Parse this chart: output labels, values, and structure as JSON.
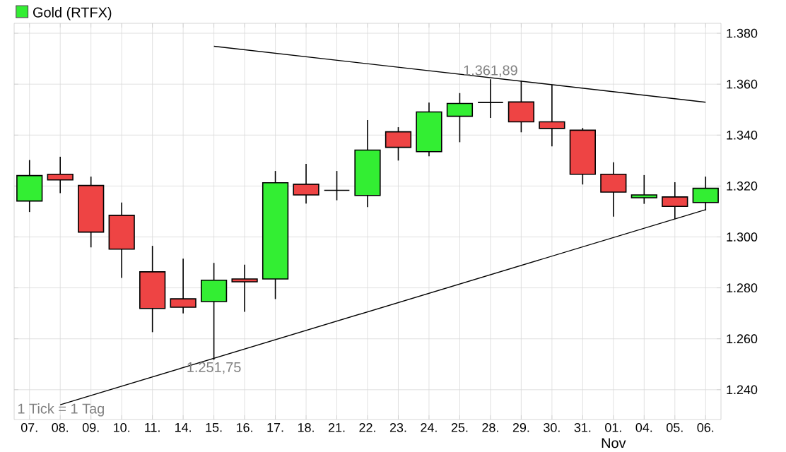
{
  "chart_data": {
    "type": "candlestick",
    "categories": [
      "07.",
      "08.",
      "09.",
      "10.",
      "11.",
      "14.",
      "15.",
      "16.",
      "17.",
      "18.",
      "21.",
      "22.",
      "23.",
      "24.",
      "25.",
      "28.",
      "29.",
      "30.",
      "31.",
      "01.",
      "04.",
      "05.",
      "06."
    ],
    "series": [
      {
        "name": "Gold (RTFX)",
        "color": "#33ee33",
        "ohlc": [
          [
            1314.1,
            1330.2,
            1309.8,
            1324.1
          ],
          [
            1324.6,
            1331.5,
            1317.2,
            1322.4
          ],
          [
            1320.2,
            1323.7,
            1295.9,
            1301.9
          ],
          [
            1308.5,
            1313.5,
            1283.9,
            1295.2
          ],
          [
            1286.3,
            1296.5,
            1262.6,
            1271.9
          ],
          [
            1275.7,
            1291.5,
            1270.0,
            1272.4
          ],
          [
            1274.6,
            1289.8,
            1251.75,
            1283.0
          ],
          [
            1283.5,
            1289.1,
            1270.6,
            1282.4
          ],
          [
            1283.5,
            1325.9,
            1275.6,
            1321.3
          ],
          [
            1320.7,
            1328.7,
            1313.1,
            1316.5
          ],
          [
            1318.3,
            1325.9,
            1314.4,
            1318.3
          ],
          [
            1316.3,
            1345.9,
            1311.7,
            1334.1
          ],
          [
            1341.3,
            1343.1,
            1330.0,
            1335.2
          ],
          [
            1333.5,
            1352.8,
            1331.7,
            1349.1
          ],
          [
            1347.4,
            1356.5,
            1337.2,
            1352.4
          ],
          [
            1352.8,
            1361.89,
            1346.7,
            1352.8
          ],
          [
            1353.0,
            1361.3,
            1341.1,
            1345.2
          ],
          [
            1345.2,
            1359.8,
            1335.6,
            1342.6
          ],
          [
            1341.9,
            1342.8,
            1320.6,
            1324.6
          ],
          [
            1324.6,
            1329.3,
            1308.0,
            1317.6
          ],
          [
            1315.4,
            1324.3,
            1313.0,
            1316.5
          ],
          [
            1315.7,
            1321.5,
            1307.0,
            1312.0
          ],
          [
            1313.5,
            1323.7,
            1310.4,
            1319.1
          ]
        ],
        "colors": [
          "#33ee33",
          "#ee4444",
          "#ee4444",
          "#ee4444",
          "#ee4444",
          "#ee4444",
          "#33ee33",
          "#ee4444",
          "#33ee33",
          "#ee4444",
          "#000000",
          "#33ee33",
          "#ee4444",
          "#33ee33",
          "#33ee33",
          "#000000",
          "#ee4444",
          "#ee4444",
          "#ee4444",
          "#ee4444",
          "#33ee33",
          "#ee4444",
          "#33ee33"
        ]
      },
      {
        "type": "line",
        "color": "#000000",
        "values": [
          null,
          null,
          null,
          null,
          null,
          null,
          1374.9,
          null,
          null,
          null,
          null,
          null,
          null,
          null,
          null,
          null,
          null,
          null,
          null,
          null,
          null,
          null,
          1352.9
        ]
      },
      {
        "type": "line",
        "color": "#000000",
        "values": [
          null,
          1234.1,
          null,
          null,
          null,
          null,
          null,
          null,
          null,
          null,
          null,
          null,
          null,
          null,
          null,
          null,
          null,
          null,
          null,
          null,
          null,
          null,
          1310.7
        ]
      }
    ],
    "ylim": [
      1228.3,
      1383.9
    ],
    "yticks": [
      {
        "value": 1240,
        "label": "1.240"
      },
      {
        "value": 1260,
        "label": "1.260"
      },
      {
        "value": 1280,
        "label": "1.280"
      },
      {
        "value": 1300,
        "label": "1.300"
      },
      {
        "value": 1320,
        "label": "1.320"
      },
      {
        "value": 1340,
        "label": "1.340"
      },
      {
        "value": 1360,
        "label": "1.360"
      },
      {
        "value": 1380,
        "label": "1.380"
      }
    ],
    "grid": true,
    "legend": "top left",
    "annotations": [
      {
        "text": "1.361,89",
        "x": "28.",
        "y": 1361.89
      },
      {
        "text": "1.251,75",
        "x": "15.",
        "y": 1251.75
      },
      "1 Tick = 1 Tag",
      "Nov"
    ]
  }
}
